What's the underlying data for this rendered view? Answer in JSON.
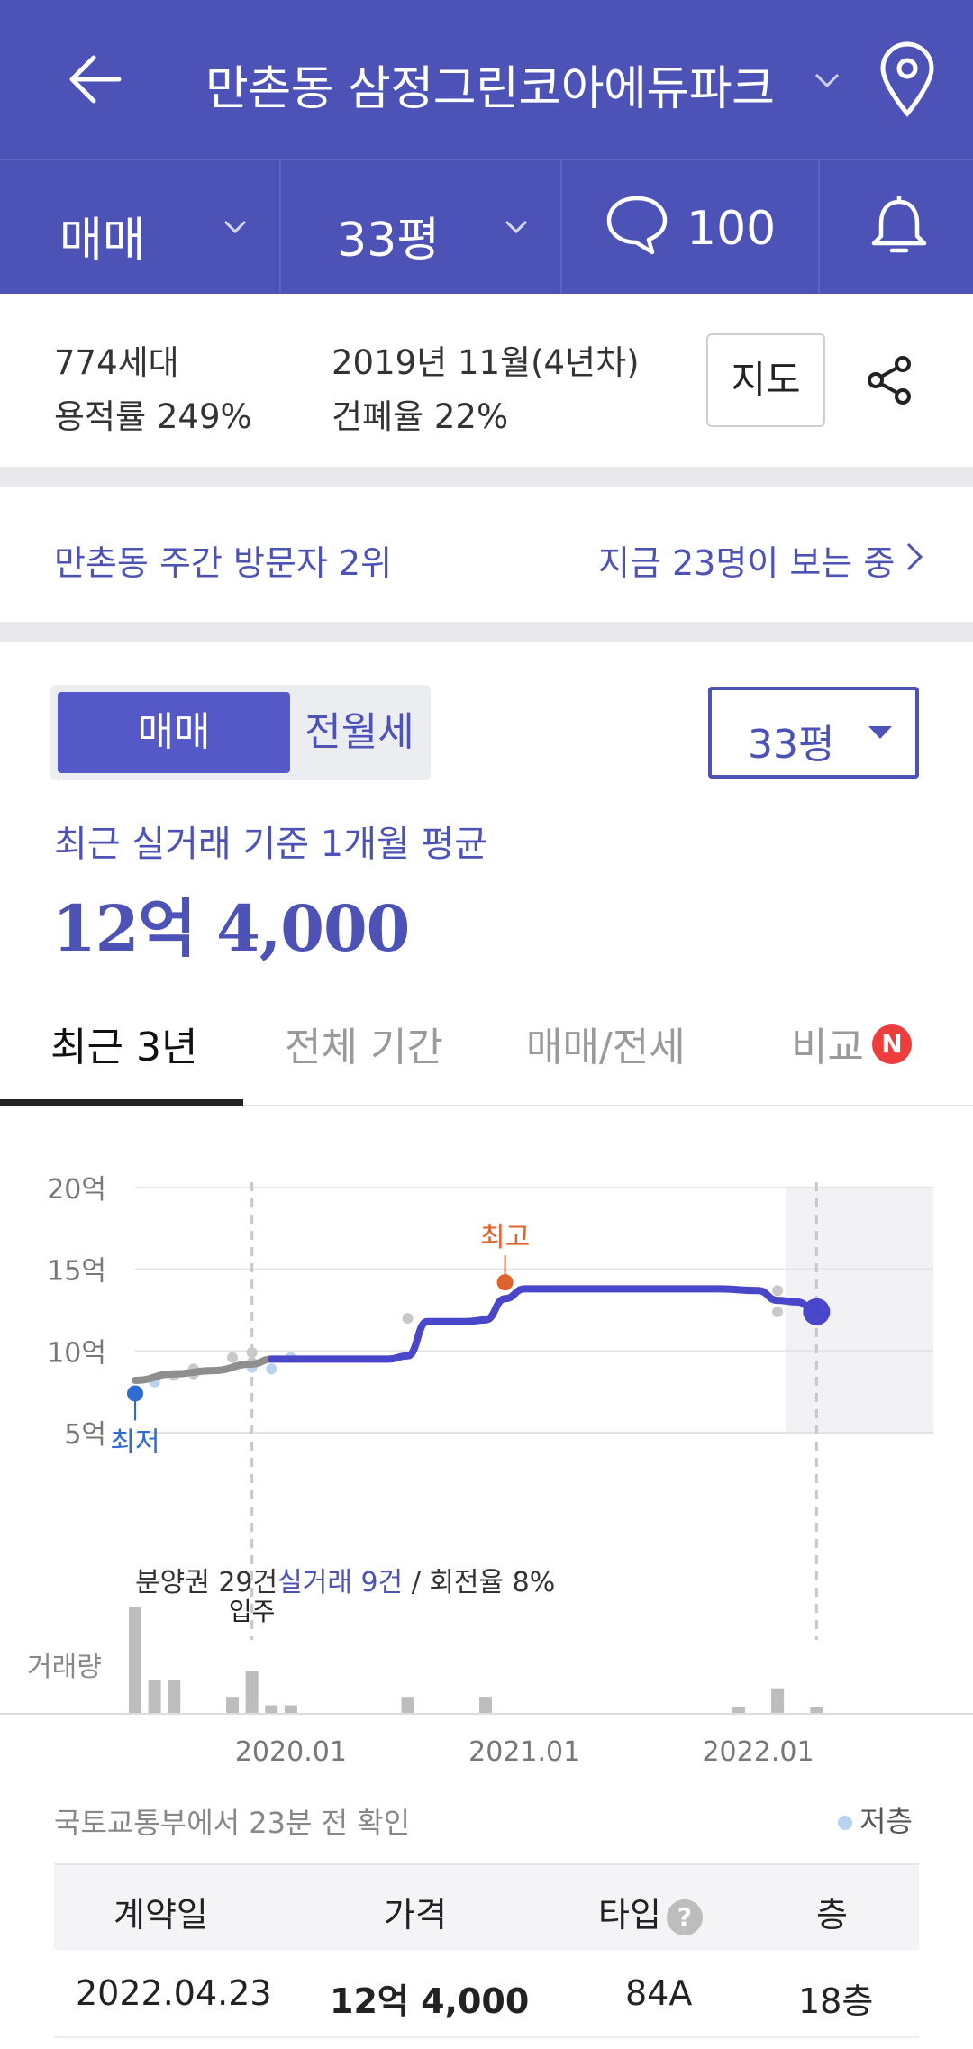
{
  "header": {
    "title": "만촌동 삼정그린코아에듀파크"
  },
  "filters": {
    "trade": "매매",
    "size": "33평",
    "comments": "100"
  },
  "info": {
    "households": "774세대",
    "floor_area_ratio": "용적률 249%",
    "completion": "2019년 11월(4년차)",
    "coverage_ratio": "건폐율 22%",
    "map_button": "지도"
  },
  "visitor": {
    "rank": "만촌동 주간 방문자 2위",
    "viewing": "지금 23명이 보는 중"
  },
  "segment": {
    "active": "매매",
    "inactive": "전월세"
  },
  "size_select": {
    "value": "33평"
  },
  "average": {
    "caption": "최근 실거래 기준 1개월 평균",
    "value": "12억 4,000"
  },
  "tabs": [
    {
      "label": "최근 3년"
    },
    {
      "label": "전체 기간"
    },
    {
      "label": "매매/전세"
    },
    {
      "label": "비교"
    }
  ],
  "badge_new": "N",
  "chart_labels": {
    "high": "최고",
    "low": "최저",
    "move_in": "입주",
    "volume": "거래량",
    "stats_a": "분양권 29건",
    "stats_b": "실거래 9건",
    "stats_c": " / 회전율 8%"
  },
  "chart_data": {
    "type": "line",
    "yticks": [
      "20억",
      "15억",
      "10억",
      "5억"
    ],
    "ylim": [
      5,
      20
    ],
    "yunit": "억",
    "xticks": [
      "2020.01",
      "2021.01",
      "2022.01"
    ],
    "x_range": [
      "2019.05",
      "2022.10"
    ],
    "grid": true,
    "series": [
      {
        "values": [
          [
            "2019.05",
            8.2
          ],
          [
            "2019.07",
            8.6
          ],
          [
            "2019.09",
            8.8
          ],
          [
            "2019.11",
            9.2
          ],
          [
            "2019.12",
            9.5
          ],
          [
            "2020.01",
            9.5
          ],
          [
            "2020.06",
            9.5
          ],
          [
            "2020.07",
            9.7
          ],
          [
            "2020.08",
            11.8
          ],
          [
            "2020.10",
            11.8
          ],
          [
            "2020.11",
            11.9
          ],
          [
            "2020.12",
            13.2
          ],
          [
            "2021.01",
            13.8
          ],
          [
            "2021.06",
            13.8
          ],
          [
            "2021.11",
            13.8
          ],
          [
            "2022.01",
            13.7
          ],
          [
            "2022.02",
            13.1
          ],
          [
            "2022.03",
            13.0
          ],
          [
            "2022.04",
            12.4
          ]
        ]
      }
    ],
    "markers": {
      "high": {
        "x": "2020.12",
        "y": 14.2
      },
      "low": {
        "x": "2019.05",
        "y": 7.4
      },
      "last": {
        "x": "2022.04",
        "y": 12.4
      },
      "move_in": "2019.11"
    },
    "scatter_presale": [
      [
        "2019.06",
        8.3
      ],
      [
        "2019.07",
        8.5
      ],
      [
        "2019.08",
        8.9
      ],
      [
        "2019.08",
        8.6
      ],
      [
        "2019.10",
        9.6
      ],
      [
        "2019.11",
        9.9
      ],
      [
        "2019.11",
        9.3
      ],
      [
        "2020.07",
        12.0
      ],
      [
        "2022.02",
        13.7
      ],
      [
        "2022.02",
        12.4
      ]
    ],
    "scatter_low_floor": [
      [
        "2019.06",
        8.1
      ],
      [
        "2019.11",
        9.0
      ],
      [
        "2019.12",
        8.9
      ],
      [
        "2020.01",
        9.6
      ]
    ],
    "volume": [
      [
        "2019.05",
        5
      ],
      [
        "2019.06",
        1.6
      ],
      [
        "2019.07",
        1.6
      ],
      [
        "2019.10",
        0.8
      ],
      [
        "2019.11",
        2
      ],
      [
        "2019.12",
        0.4
      ],
      [
        "2020.01",
        0.4
      ],
      [
        "2020.07",
        0.8
      ],
      [
        "2020.11",
        0.8
      ],
      [
        "2021.12",
        0.3
      ],
      [
        "2022.02",
        1.2
      ],
      [
        "2022.04",
        0.3
      ]
    ]
  },
  "source_note": "국토교통부에서 23분 전 확인",
  "low_floor_legend": "저층",
  "table": {
    "headers": [
      "계약일",
      "가격",
      "타입",
      "층"
    ],
    "rows": [
      {
        "date": "2022.04.23",
        "price": "12억 4,000",
        "type": "84A",
        "floor": "18층"
      }
    ]
  }
}
